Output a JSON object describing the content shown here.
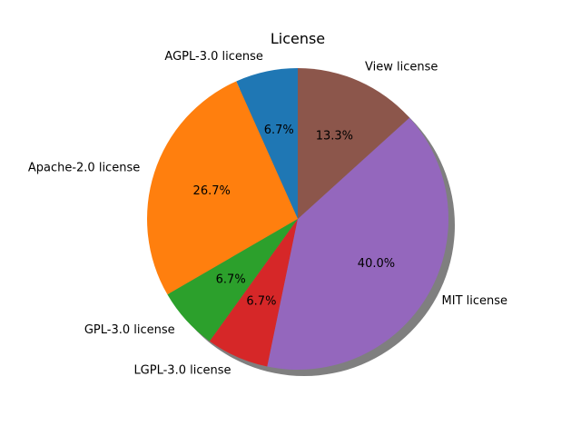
{
  "chart_data": {
    "type": "pie",
    "title": "License",
    "start_angle_deg": 90,
    "direction": "counterclockwise",
    "shadow": true,
    "slices": [
      {
        "label": "AGPL-3.0 license",
        "percent": 6.7,
        "pct_label": "6.7%",
        "color": "#1f77b4"
      },
      {
        "label": "Apache-2.0 license",
        "percent": 26.7,
        "pct_label": "26.7%",
        "color": "#ff7f0e"
      },
      {
        "label": "GPL-3.0 license",
        "percent": 6.7,
        "pct_label": "6.7%",
        "color": "#2ca02c"
      },
      {
        "label": "LGPL-3.0 license",
        "percent": 6.7,
        "pct_label": "6.7%",
        "color": "#d62728"
      },
      {
        "label": "MIT license",
        "percent": 40.0,
        "pct_label": "40.0%",
        "color": "#9467bd"
      },
      {
        "label": "View license",
        "percent": 13.3,
        "pct_label": "13.3%",
        "color": "#8c564b"
      }
    ]
  }
}
